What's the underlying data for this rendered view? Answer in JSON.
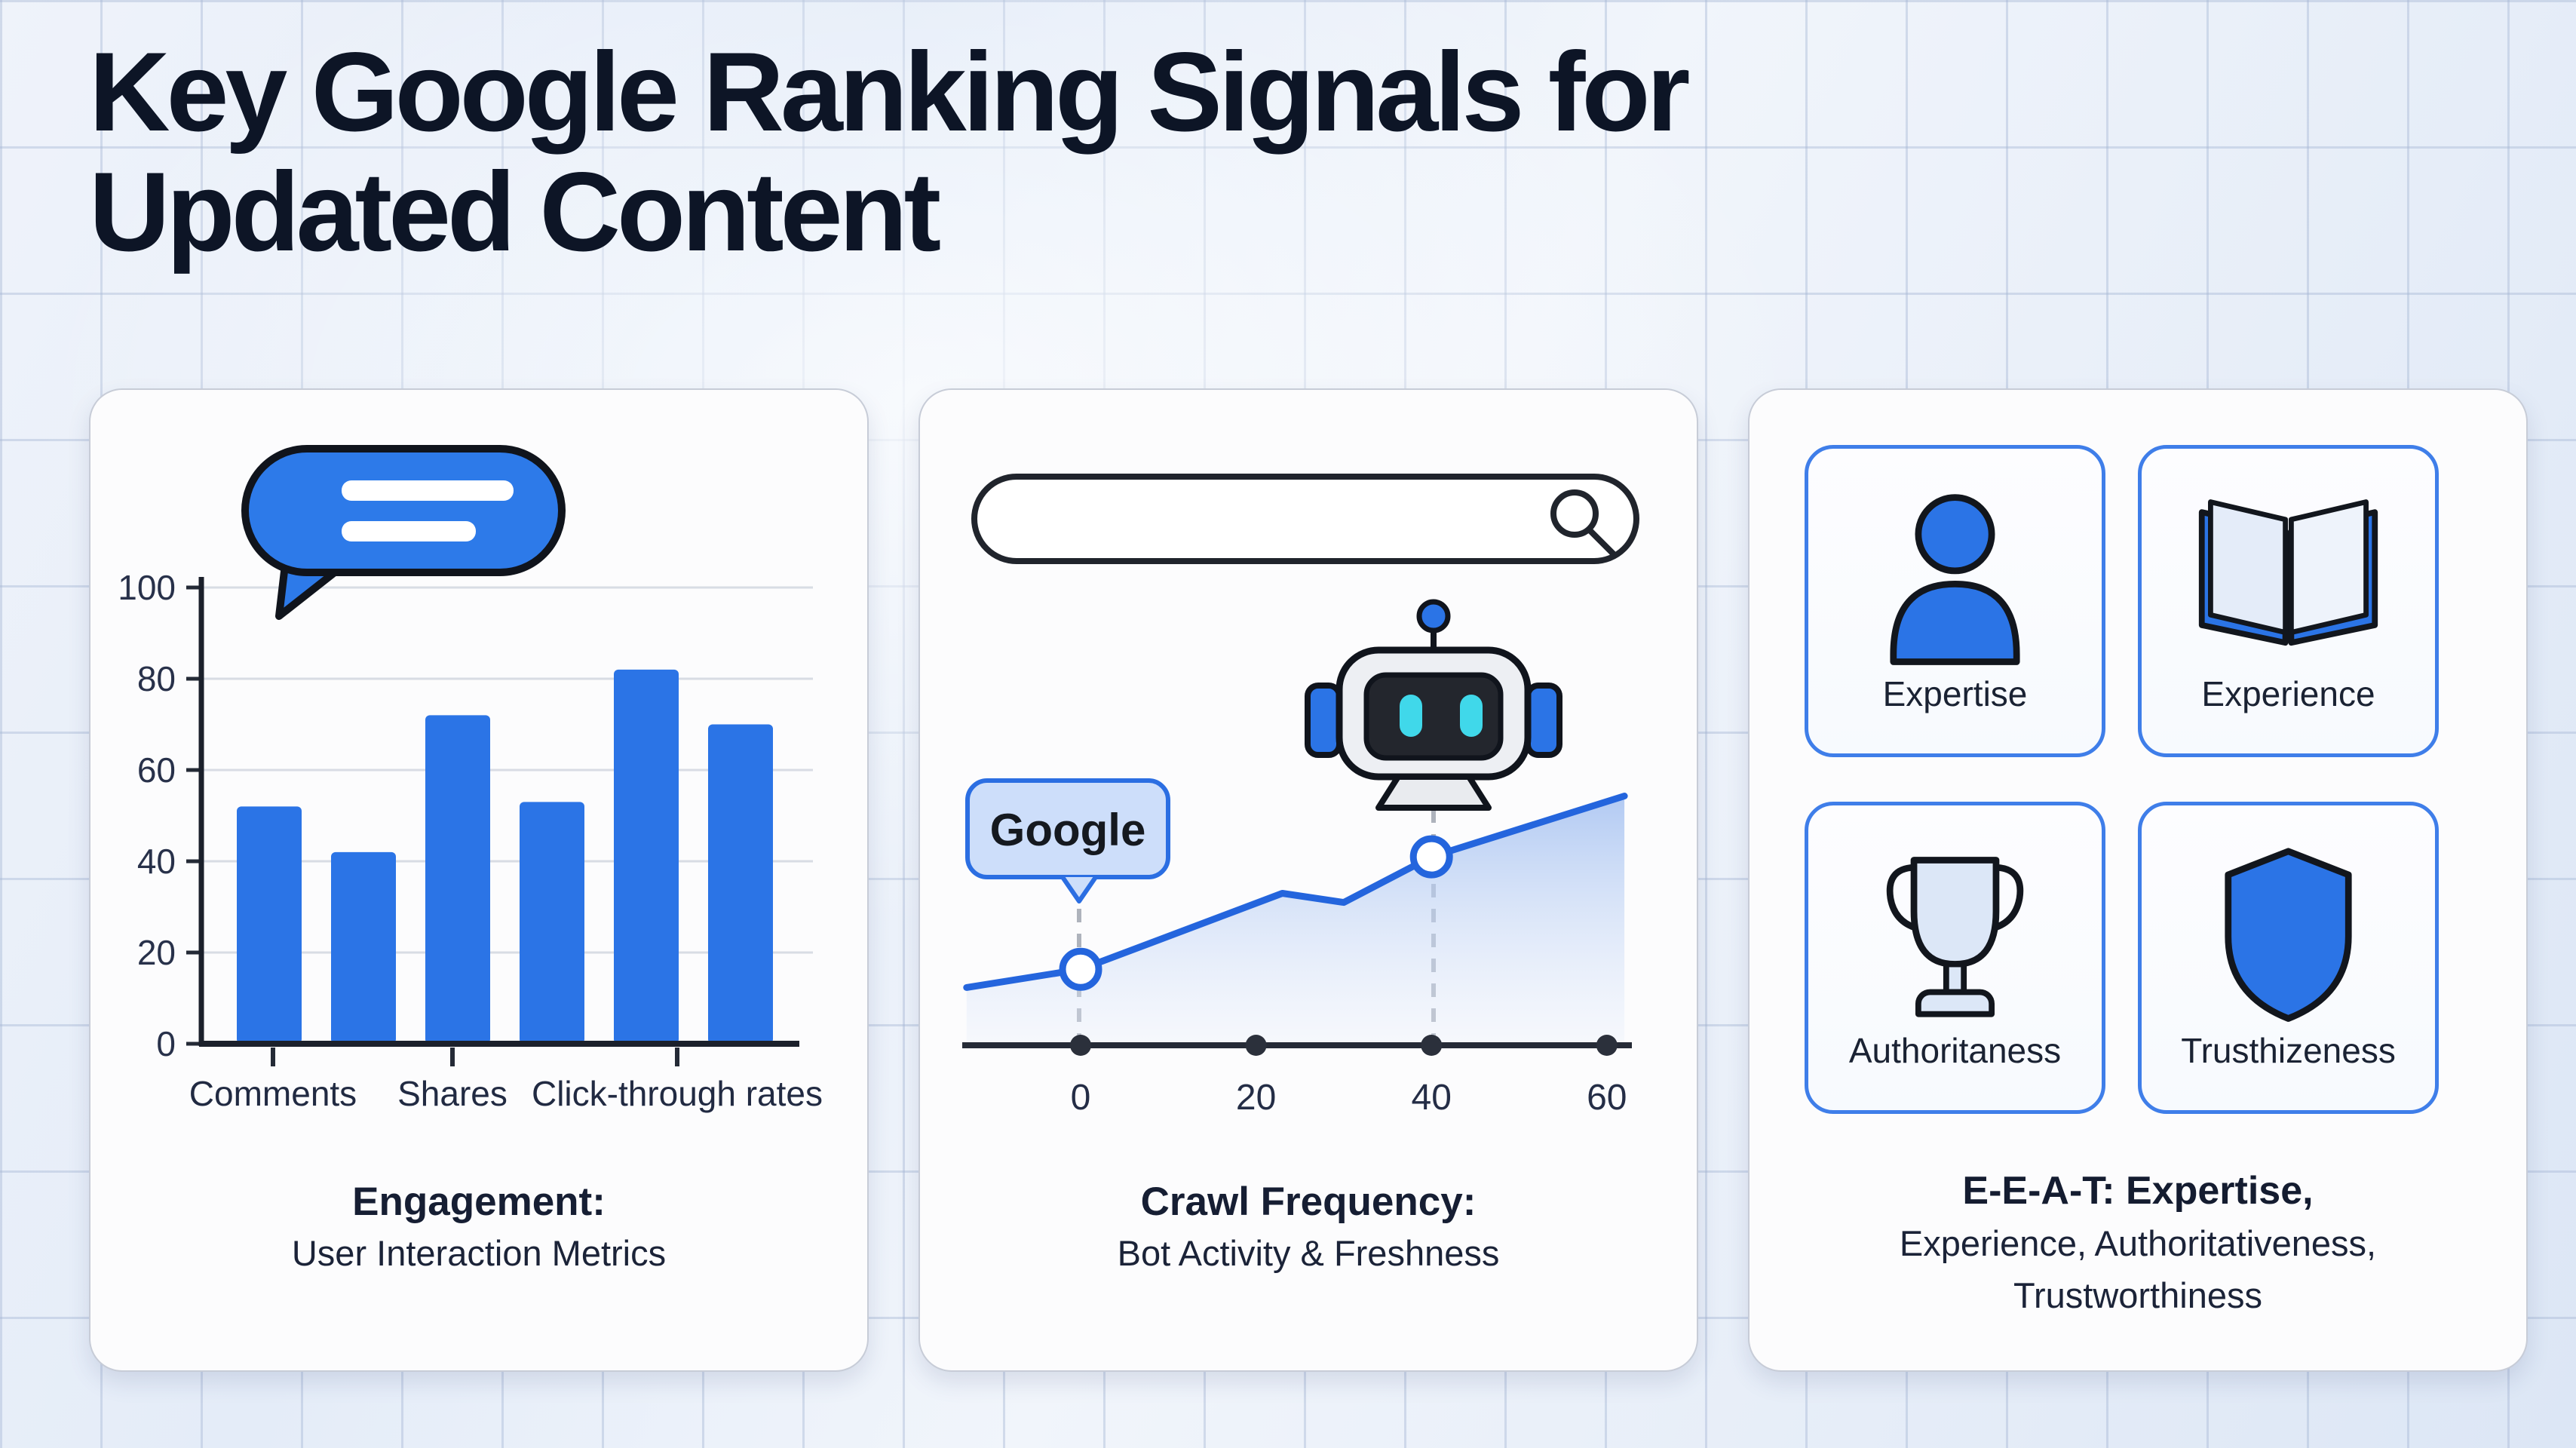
{
  "title": {
    "line1": "Key Google Ranking Signals for",
    "line2": "Updated Content"
  },
  "colors": {
    "primary_blue": "#2b74e6",
    "line_blue": "#2465dd",
    "dark_outline": "#14181f",
    "navy_text": "#161e33",
    "axis_dark": "#1b202b",
    "grid_line": "#d8dce4",
    "tag_fill": "#cddefa",
    "tag_border": "#2b6ee2",
    "cyan_eyes": "#40d8ea",
    "card_bg": "#fcfcfd",
    "tile_border": "#3f7ee9",
    "area_top": "#9fbdf0",
    "area_bottom": "#e8effb"
  },
  "cards": {
    "engagement": {
      "icon": "speech-bubble-icon",
      "caption_title": "Engagement:",
      "caption_subtitle": "User Interaction Metrics"
    },
    "crawl": {
      "icons": [
        "search-bar",
        "robot-icon"
      ],
      "google_label": "Google",
      "caption_title": "Crawl Frequency:",
      "caption_subtitle": "Bot Activity & Freshness"
    },
    "eeat": {
      "tiles": [
        {
          "icon": "person-icon",
          "label": "Expertise"
        },
        {
          "icon": "open-book-icon",
          "label": "Experience"
        },
        {
          "icon": "trophy-icon",
          "label": "Authoritaness"
        },
        {
          "icon": "shield-icon",
          "label": "Trusthizeness"
        }
      ],
      "caption_line1": "E-E-A-T: Expertise,",
      "caption_line2": "Experience, Authoritativeness,",
      "caption_line3": "Trustworthiness"
    }
  },
  "chart_data": [
    {
      "type": "bar",
      "title": "Engagement: User Interaction Metrics",
      "values": [
        52,
        42,
        72,
        53,
        82,
        70
      ],
      "x_tick_labels": [
        "Comments",
        "Shares",
        "Click-through rates"
      ],
      "ylabel": "",
      "xlabel": "",
      "ylim": [
        0,
        100
      ],
      "y_ticks": [
        0,
        20,
        40,
        60,
        80,
        100
      ],
      "grid": true,
      "bar_color": "#2b74e6"
    },
    {
      "type": "area",
      "title": "Crawl Frequency: Bot Activity & Freshness",
      "x": [
        -13,
        0,
        23,
        30,
        40,
        62
      ],
      "y": [
        19,
        25,
        50,
        47,
        62,
        82
      ],
      "marker_x": [
        0,
        40
      ],
      "x_ticks": [
        0,
        20,
        40,
        60
      ],
      "xlim": [
        -13,
        62
      ],
      "annotation": "Google",
      "line_color": "#2465dd",
      "grid": false
    }
  ]
}
